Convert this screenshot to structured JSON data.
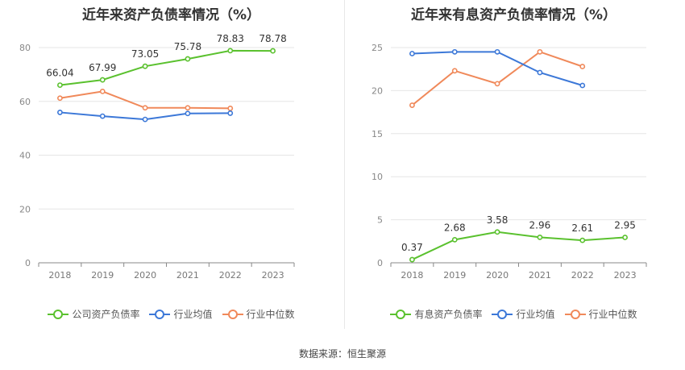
{
  "chart_data": [
    {
      "type": "line",
      "title": "近年来资产负债率情况（%）",
      "categories": [
        "2018",
        "2019",
        "2020",
        "2021",
        "2022",
        "2023"
      ],
      "ylim": [
        0,
        80
      ],
      "yticks": [
        0,
        20,
        40,
        60,
        80
      ],
      "grid": true,
      "legend_position": "bottom",
      "series": [
        {
          "name": "公司资产负债率",
          "color": "#5ac12e",
          "values": [
            66.04,
            67.99,
            73.05,
            75.78,
            78.83,
            78.78
          ],
          "labels": [
            "66.04",
            "67.99",
            "73.05",
            "75.78",
            "78.83",
            "78.78"
          ]
        },
        {
          "name": "行业均值",
          "color": "#3c78d8",
          "values": [
            55.9,
            54.5,
            53.3,
            55.5,
            55.6,
            null
          ],
          "labels": null
        },
        {
          "name": "行业中位数",
          "color": "#f0895a",
          "values": [
            61.2,
            63.7,
            57.6,
            57.6,
            57.4,
            null
          ],
          "labels": null
        }
      ]
    },
    {
      "type": "line",
      "title": "近年来有息资产负债率情况（%）",
      "categories": [
        "2018",
        "2019",
        "2020",
        "2021",
        "2022",
        "2023"
      ],
      "ylim": [
        0,
        25
      ],
      "yticks": [
        0,
        5,
        10,
        15,
        20,
        25
      ],
      "grid": true,
      "legend_position": "bottom",
      "series": [
        {
          "name": "有息资产负债率",
          "color": "#5ac12e",
          "values": [
            0.37,
            2.68,
            3.58,
            2.96,
            2.61,
            2.95
          ],
          "labels": [
            "0.37",
            "2.68",
            "3.58",
            "2.96",
            "2.61",
            "2.95"
          ]
        },
        {
          "name": "行业均值",
          "color": "#3c78d8",
          "values": [
            24.3,
            24.5,
            24.5,
            22.1,
            20.6,
            null
          ],
          "labels": null
        },
        {
          "name": "行业中位数",
          "color": "#f0895a",
          "values": [
            18.3,
            22.3,
            20.8,
            24.5,
            22.8,
            null
          ],
          "labels": null
        }
      ]
    }
  ],
  "footer": {
    "source": "数据来源：恒生聚源"
  }
}
